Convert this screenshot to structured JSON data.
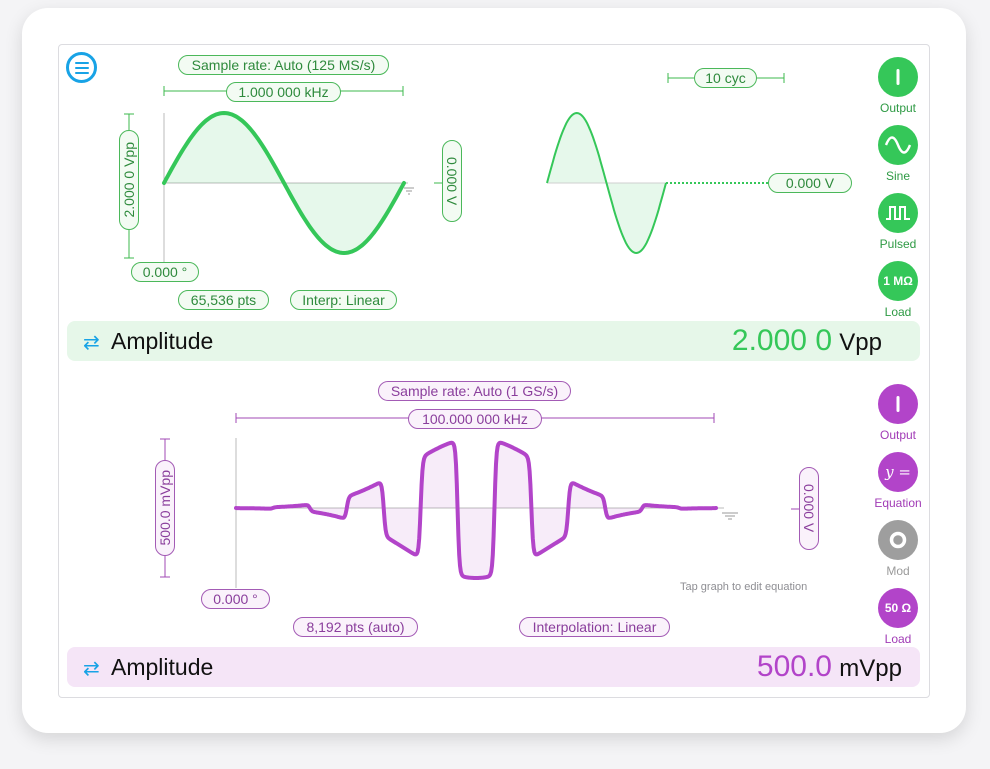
{
  "channel1": {
    "sample_rate": "Sample rate: Auto (125 MS/s)",
    "frequency": "1.000 000 kHz",
    "amplitude_label": "2.000 0 Vpp",
    "offset_label": "0.000 V",
    "phase": "0.000 °",
    "points": "65,536 pts",
    "interpolation": "Interp: Linear",
    "cycles": "10 cyc",
    "idle_voltage": "0.000 V",
    "buttons": [
      {
        "label": "Output",
        "icon": "power-icon"
      },
      {
        "label": "Sine",
        "icon": "sine-icon"
      },
      {
        "label": "Pulsed",
        "icon": "pulse-icon"
      },
      {
        "label": "Load",
        "icon": "load-icon",
        "text": "1 MΩ"
      }
    ],
    "param_name": "Amplitude",
    "param_value": "2.000 0",
    "param_unit": "Vpp",
    "color": "#35c759"
  },
  "channel2": {
    "sample_rate": "Sample rate: Auto (1 GS/s)",
    "frequency": "100.000 000 kHz",
    "amplitude_label": "500.0 mVpp",
    "offset_label": "0.000 V",
    "phase": "0.000 °",
    "points": "8,192 pts (auto)",
    "interpolation": "Interpolation: Linear",
    "hint": "Tap graph to edit equation",
    "buttons": [
      {
        "label": "Output",
        "icon": "power-icon"
      },
      {
        "label": "Equation",
        "icon": "equation-icon",
        "text": "y ="
      },
      {
        "label": "Mod",
        "icon": "mod-icon"
      },
      {
        "label": "Load",
        "icon": "load-icon",
        "text": "50 Ω"
      }
    ],
    "param_name": "Amplitude",
    "param_value": "500.0",
    "param_unit": "mVpp",
    "color": "#b244c9"
  },
  "swap_icon": "swap-arrows-icon",
  "menu_icon": "menu-icon"
}
